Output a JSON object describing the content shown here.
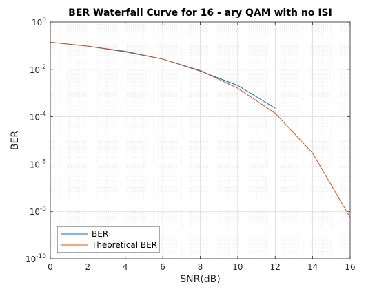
{
  "chart_data": {
    "type": "line",
    "title": "BER Waterfall Curve for 16 - ary QAM with no ISI",
    "xlabel": "SNR(dB)",
    "ylabel": "BER",
    "xlim": [
      0,
      16
    ],
    "ylim": [
      1e-10,
      1
    ],
    "yscale": "log",
    "grid": true,
    "minor_grid": true,
    "x_ticks": [
      {
        "value": 0,
        "label": "0"
      },
      {
        "value": 2,
        "label": "2"
      },
      {
        "value": 4,
        "label": "4"
      },
      {
        "value": 6,
        "label": "6"
      },
      {
        "value": 8,
        "label": "8"
      },
      {
        "value": 10,
        "label": "10"
      },
      {
        "value": 12,
        "label": "12"
      },
      {
        "value": 14,
        "label": "14"
      },
      {
        "value": 16,
        "label": "16"
      }
    ],
    "y_ticks": [
      {
        "value": 1,
        "base": "10",
        "exp": "0"
      },
      {
        "value": 0.01,
        "base": "10",
        "exp": "-2"
      },
      {
        "value": 0.0001,
        "base": "10",
        "exp": "-4"
      },
      {
        "value": 1e-06,
        "base": "10",
        "exp": "-6"
      },
      {
        "value": 1e-08,
        "base": "10",
        "exp": "-8"
      },
      {
        "value": 1e-10,
        "base": "10",
        "exp": "-10"
      }
    ],
    "legend_position": "bottom-left",
    "series": [
      {
        "name": "BER",
        "color": "#0072BD",
        "x": [
          0,
          2,
          4,
          6,
          8,
          10,
          12
        ],
        "y": [
          0.14,
          0.095,
          0.055,
          0.027,
          0.0085,
          0.0021,
          0.00023
        ]
      },
      {
        "name": "Theoretical BER",
        "color": "#D95319",
        "x": [
          0,
          2,
          4,
          6,
          8,
          10,
          12,
          14,
          16
        ],
        "y": [
          0.14,
          0.095,
          0.058,
          0.027,
          0.009,
          0.0016,
          0.00014,
          2.9e-06,
          5.5e-09
        ]
      }
    ]
  }
}
